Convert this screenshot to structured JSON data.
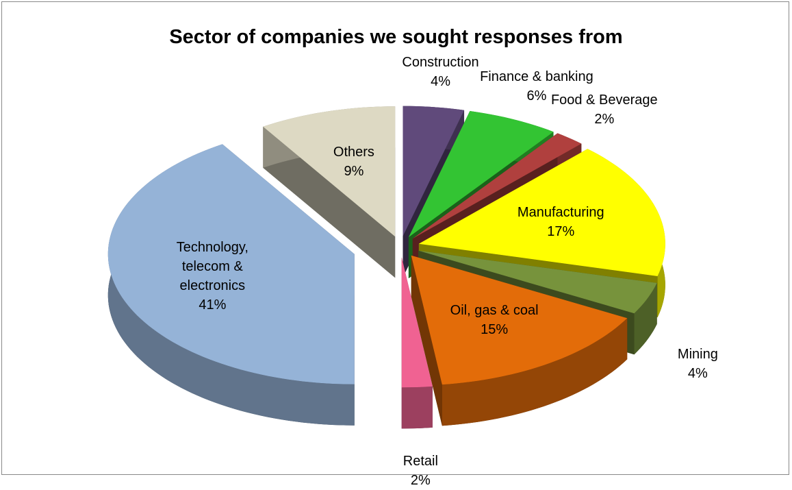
{
  "chart_data": {
    "type": "pie",
    "title": "Sector of companies we sought responses from",
    "categories": [
      "Construction",
      "Finance & banking",
      "Food & Beverage",
      "Manufacturing",
      "Mining",
      "Oil, gas & coal",
      "Retail",
      "Technology, telecom & electronics",
      "Others"
    ],
    "values": [
      4,
      6,
      2,
      17,
      4,
      15,
      2,
      41,
      9
    ],
    "value_labels": [
      "4%",
      "6%",
      "2%",
      "17%",
      "4%",
      "15%",
      "2%",
      "41%",
      "9%"
    ],
    "colors": [
      "#604a7b",
      "#33c433",
      "#b0403e",
      "#ffff00",
      "#77933c",
      "#e36c09",
      "#f06292",
      "#95b3d7",
      "#ddd9c3"
    ]
  }
}
